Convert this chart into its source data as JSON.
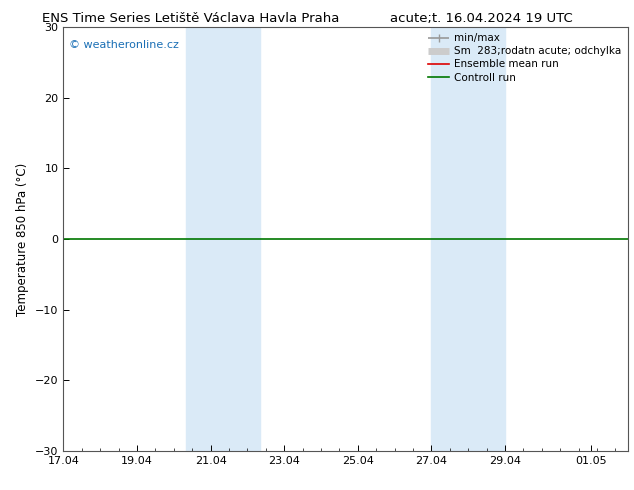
{
  "title_left": "ENS Time Series Letiště Václava Havla Praha",
  "title_right": "acute;t. 16.04.2024 19 UTC",
  "ylabel": "Temperature 850 hPa (°C)",
  "watermark": "© weatheronline.cz",
  "watermark_color": "#1a6fb5",
  "ylim": [
    -30,
    30
  ],
  "yticks": [
    -30,
    -20,
    -10,
    0,
    10,
    20,
    30
  ],
  "xlim": [
    0,
    15.333
  ],
  "xtick_labels": [
    "17.04",
    "19.04",
    "21.04",
    "23.04",
    "25.04",
    "27.04",
    "29.04",
    "01.05"
  ],
  "xtick_positions": [
    0,
    2,
    4,
    6,
    8,
    10,
    12,
    14.333
  ],
  "shade_bands": [
    {
      "xstart": 3.333,
      "xend": 5.333,
      "color": "#daeaf7"
    },
    {
      "xstart": 10.0,
      "xend": 12.0,
      "color": "#daeaf7"
    }
  ],
  "zero_line_color": "#007700",
  "zero_line_lw": 1.2,
  "legend_entries": [
    {
      "label": "min/max",
      "color": "#999999",
      "lw": 1.2,
      "type": "line_capped"
    },
    {
      "label": "Sm  283;rodatn acute; odchylka",
      "color": "#cccccc",
      "lw": 5,
      "type": "band"
    },
    {
      "label": "Ensemble mean run",
      "color": "#dd0000",
      "lw": 1.2,
      "type": "line"
    },
    {
      "label": "Controll run",
      "color": "#007700",
      "lw": 1.2,
      "type": "line"
    }
  ],
  "background_color": "#ffffff",
  "plot_bg_color": "#ffffff",
  "border_color": "#555555",
  "title_fontsize": 9.5,
  "axis_fontsize": 8.5,
  "tick_fontsize": 8,
  "legend_fontsize": 7.5
}
